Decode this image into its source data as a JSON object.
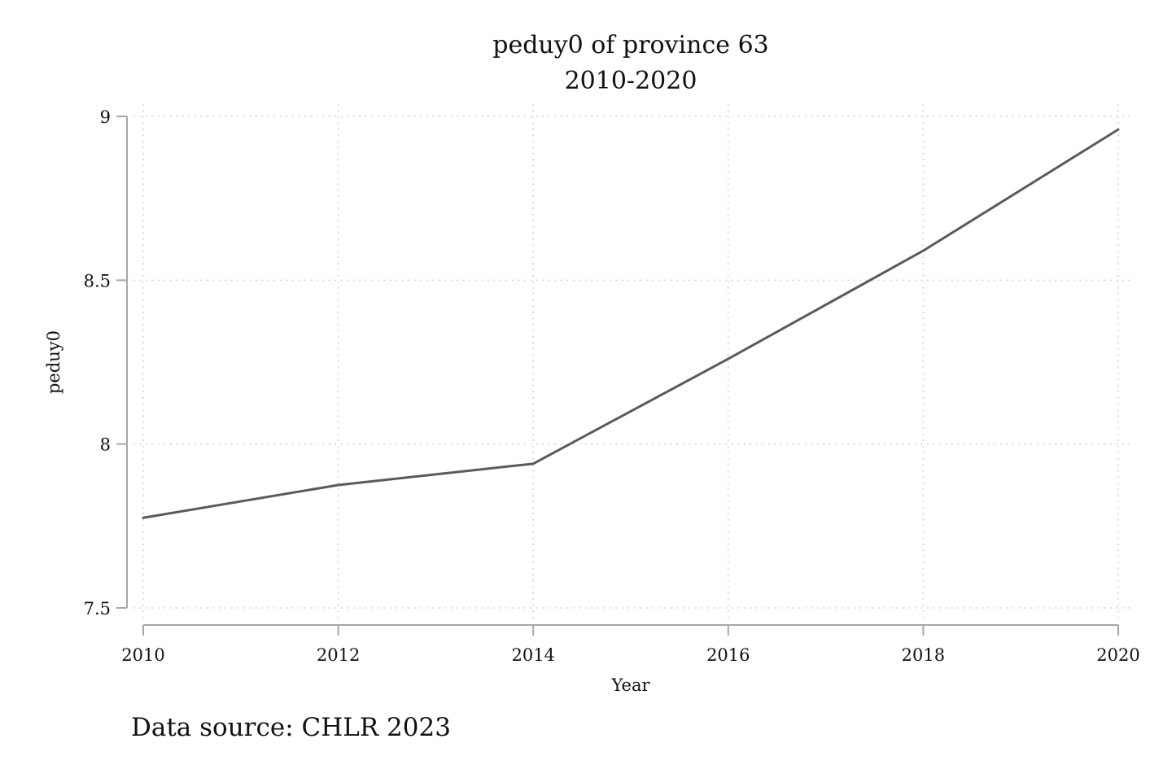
{
  "chart_data": {
    "type": "line",
    "title": "peduy0 of province 63",
    "subtitle": "2010-2020",
    "xlabel": "Year",
    "ylabel": "peduy0",
    "note": "Data source: CHLR 2023",
    "x": [
      2010,
      2012,
      2014,
      2016,
      2018,
      2020
    ],
    "series": [
      {
        "values": [
          7.775,
          7.875,
          7.94,
          8.26,
          8.59,
          8.96
        ]
      }
    ],
    "xticks": [
      2010,
      2012,
      2014,
      2016,
      2018,
      2020
    ],
    "xtick_labels": [
      "2010",
      "2012",
      "2014",
      "2016",
      "2018",
      "2020"
    ],
    "yticks": [
      7.5,
      8,
      8.5,
      9
    ],
    "ytick_labels": [
      "7.5",
      "8",
      "8.5",
      "9"
    ],
    "xlim": [
      2010,
      2020
    ],
    "ylim": [
      7.5,
      9
    ],
    "grid": true,
    "colors": {
      "line": "#5a5a5a",
      "axis": "#a6a6a6",
      "grid": "#c8c8c8"
    }
  }
}
